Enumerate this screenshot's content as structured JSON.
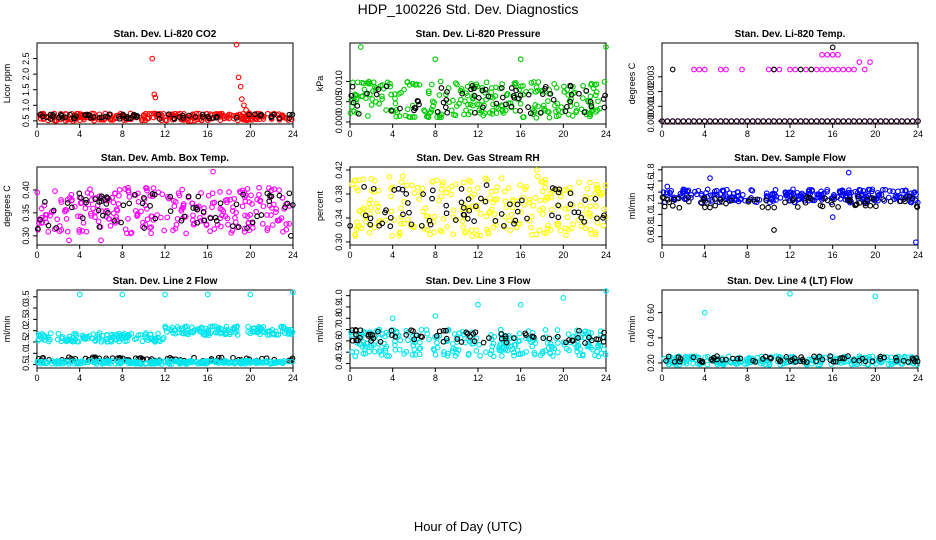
{
  "figure": {
    "title": "HDP_100226  Std. Dev. Diagnostics",
    "xlabel": "Hour of Day (UTC)"
  },
  "chart_data": [
    {
      "type": "scatter",
      "title": "Stan. Dev. Li-820 CO2",
      "ylabel": "Licor ppm",
      "xlim": [
        0,
        24
      ],
      "xticks": [
        0,
        4,
        8,
        12,
        16,
        20,
        24
      ],
      "ylim": [
        0.4,
        3.0
      ],
      "yticks": [
        0.5,
        1.0,
        1.5,
        2.0,
        2.5
      ],
      "series": [
        {
          "name": "red",
          "color": "#ff0000",
          "base": 0.62,
          "spread": 0.12,
          "outliers": [
            [
              10.8,
              2.5
            ],
            [
              11.0,
              1.35
            ],
            [
              11.1,
              1.25
            ],
            [
              18.7,
              2.95
            ],
            [
              18.9,
              1.9
            ],
            [
              19.1,
              1.6
            ],
            [
              19.2,
              1.2
            ],
            [
              19.4,
              1.0
            ],
            [
              19.6,
              0.85
            ],
            [
              19.9,
              0.75
            ]
          ]
        },
        {
          "name": "black",
          "color": "#000000",
          "base": 0.64,
          "spread": 0.08,
          "outliers": []
        }
      ]
    },
    {
      "type": "scatter",
      "title": "Stan. Dev. Li-820 Pressure",
      "ylabel": "kPa",
      "xlim": [
        0,
        24
      ],
      "xticks": [
        0,
        4,
        8,
        12,
        16,
        20,
        24
      ],
      "ylim": [
        -0.0005,
        0.0195
      ],
      "yticks": [
        0.0,
        0.005,
        0.01
      ],
      "series": [
        {
          "name": "green",
          "color": "#00cc00",
          "base": 0.0055,
          "spread": 0.0045,
          "outliers": [
            [
              1.0,
              0.0185
            ],
            [
              8.0,
              0.0155
            ],
            [
              16.0,
              0.0155
            ],
            [
              24.0,
              0.0185
            ]
          ]
        },
        {
          "name": "black",
          "color": "#000000",
          "base": 0.0055,
          "spread": 0.0035,
          "outliers": []
        }
      ]
    },
    {
      "type": "scatter",
      "title": "Stan. Dev. Li-820 Temp.",
      "ylabel": "degrees C",
      "xlim": [
        0,
        24
      ],
      "xticks": [
        0,
        4,
        8,
        12,
        16,
        20,
        24
      ],
      "ylim": [
        -0.0002,
        0.0053
      ],
      "yticks": [
        0.0,
        0.001,
        0.002,
        0.003
      ],
      "series": [
        {
          "name": "magenta",
          "color": "#ff00ff",
          "base": 0.0,
          "spread": 0.0,
          "outliers": [
            [
              3.0,
              0.0035
            ],
            [
              3.5,
              0.0035
            ],
            [
              4.0,
              0.0035
            ],
            [
              5.5,
              0.0035
            ],
            [
              6.0,
              0.0035
            ],
            [
              7.5,
              0.0035
            ],
            [
              10.0,
              0.0035
            ],
            [
              10.5,
              0.0035
            ],
            [
              11.0,
              0.0035
            ],
            [
              12.0,
              0.0035
            ],
            [
              12.5,
              0.0035
            ],
            [
              13.5,
              0.0035
            ],
            [
              14.5,
              0.0035
            ],
            [
              15.0,
              0.0035
            ],
            [
              15.5,
              0.0035
            ],
            [
              16.0,
              0.0035
            ],
            [
              16.5,
              0.0035
            ],
            [
              17.0,
              0.0035
            ],
            [
              17.5,
              0.0035
            ],
            [
              18.0,
              0.0035
            ],
            [
              19.0,
              0.0035
            ],
            [
              15.0,
              0.0045
            ],
            [
              15.5,
              0.0045
            ],
            [
              16.0,
              0.0045
            ],
            [
              16.5,
              0.0045
            ],
            [
              18.5,
              0.004
            ],
            [
              19.5,
              0.004
            ]
          ]
        },
        {
          "name": "black",
          "color": "#000000",
          "base": 0.0,
          "spread": 0.0,
          "outliers": [
            [
              1.0,
              0.0035
            ],
            [
              10.5,
              0.0035
            ],
            [
              13.0,
              0.0035
            ],
            [
              14.0,
              0.0035
            ],
            [
              16.0,
              0.005
            ]
          ]
        }
      ]
    },
    {
      "type": "scatter",
      "title": "Stan. Dev. Amb. Box Temp.",
      "ylabel": "degrees C",
      "xlim": [
        0,
        24
      ],
      "xticks": [
        0,
        4,
        8,
        12,
        16,
        20,
        24
      ],
      "ylim": [
        0.28,
        0.45
      ],
      "yticks": [
        0.3,
        0.35,
        0.4
      ],
      "series": [
        {
          "name": "magenta",
          "color": "#ff00ff",
          "base": 0.355,
          "spread": 0.05,
          "outliers": [
            [
              16.5,
              0.44
            ],
            [
              3.0,
              0.29
            ],
            [
              6.0,
              0.29
            ]
          ]
        },
        {
          "name": "black",
          "color": "#000000",
          "base": 0.355,
          "spread": 0.04,
          "outliers": [
            [
              23.8,
              0.3
            ]
          ]
        }
      ]
    },
    {
      "type": "scatter",
      "title": "Stan. Dev. Gas Stream RH",
      "ylabel": "percent",
      "xlim": [
        0,
        24
      ],
      "xticks": [
        0,
        4,
        8,
        12,
        16,
        20,
        24
      ],
      "ylim": [
        0.295,
        0.425
      ],
      "yticks": [
        0.3,
        0.34,
        0.38,
        0.42
      ],
      "series": [
        {
          "name": "yellow",
          "color": "#ffff00",
          "base": 0.36,
          "spread": 0.05,
          "outliers": [
            [
              17.5,
              0.42
            ],
            [
              0.5,
              0.31
            ]
          ]
        },
        {
          "name": "black",
          "color": "#000000",
          "base": 0.36,
          "spread": 0.035,
          "outliers": []
        }
      ]
    },
    {
      "type": "scatter",
      "title": "Stan. Dev. Sample Flow",
      "ylabel": "ml/min",
      "xlim": [
        0,
        24
      ],
      "xticks": [
        0,
        4,
        8,
        12,
        16,
        20,
        24
      ],
      "ylim": [
        0.45,
        1.85
      ],
      "yticks": [
        0.6,
        0.8,
        1.0,
        1.2,
        1.4,
        1.6,
        1.8
      ],
      "series": [
        {
          "name": "blue",
          "color": "#0000ff",
          "base": 1.33,
          "spread": 0.12,
          "outliers": [
            [
              4.5,
              1.65
            ],
            [
              17.5,
              1.75
            ],
            [
              16.0,
              0.95
            ],
            [
              23.8,
              0.5
            ],
            [
              0.5,
              1.5
            ]
          ]
        },
        {
          "name": "black",
          "color": "#000000",
          "base": 1.22,
          "spread": 0.1,
          "outliers": [
            [
              10.5,
              0.72
            ]
          ]
        }
      ]
    },
    {
      "type": "scatter",
      "title": "Stan. Dev. Line 2 Flow",
      "ylabel": "ml/min",
      "xlim": [
        0,
        24
      ],
      "xticks": [
        0,
        4,
        8,
        12,
        16,
        20,
        24
      ],
      "ylim": [
        0.35,
        3.8
      ],
      "yticks": [
        0.5,
        1.0,
        1.5,
        2.0,
        2.5,
        3.0,
        3.5
      ],
      "series": [
        {
          "name": "cyan",
          "color": "#00e5ee",
          "base": 1.7,
          "spread": 0.2,
          "trend": 0.3,
          "outliers": [
            [
              4.0,
              3.6
            ],
            [
              8.0,
              3.6
            ],
            [
              12.0,
              3.6
            ],
            [
              16.0,
              3.6
            ],
            [
              20.0,
              3.6
            ],
            [
              24.0,
              3.7
            ]
          ]
        },
        {
          "name": "black",
          "color": "#000000",
          "base": 0.75,
          "spread": 0.08,
          "outliers": []
        },
        {
          "name": "cyan-low",
          "color": "#00e5ee",
          "base": 0.6,
          "spread": 0.07,
          "outliers": []
        }
      ]
    },
    {
      "type": "scatter",
      "title": "Stan. Dev. Line 3 Flow",
      "ylabel": "ml/min",
      "xlim": [
        0,
        24
      ],
      "xticks": [
        0,
        4,
        8,
        12,
        16,
        20,
        24
      ],
      "ylim": [
        0.36,
        1.05
      ],
      "yticks": [
        0.4,
        0.5,
        0.6,
        0.7,
        0.8,
        0.9,
        1.0
      ],
      "series": [
        {
          "name": "cyan",
          "color": "#00e5ee",
          "base": 0.58,
          "spread": 0.12,
          "outliers": [
            [
              4.0,
              0.8
            ],
            [
              8.0,
              0.82
            ],
            [
              12.0,
              0.92
            ],
            [
              16.0,
              0.92
            ],
            [
              20.0,
              0.98
            ],
            [
              24.0,
              1.04
            ]
          ]
        },
        {
          "name": "black",
          "color": "#000000",
          "base": 0.64,
          "spread": 0.06,
          "outliers": []
        }
      ]
    },
    {
      "type": "scatter",
      "title": "Stan. Dev. Line 4 (LT) Flow",
      "ylabel": "ml/min",
      "xlim": [
        0,
        24
      ],
      "xticks": [
        0,
        4,
        8,
        12,
        16,
        20,
        24
      ],
      "ylim": [
        0.16,
        0.78
      ],
      "yticks": [
        0.2,
        0.4,
        0.6
      ],
      "series": [
        {
          "name": "cyan",
          "color": "#00e5ee",
          "base": 0.22,
          "spread": 0.035,
          "outliers": [
            [
              4.0,
              0.6
            ],
            [
              12.0,
              0.75
            ],
            [
              20.0,
              0.73
            ]
          ]
        },
        {
          "name": "black",
          "color": "#000000",
          "base": 0.23,
          "spread": 0.025,
          "outliers": []
        }
      ]
    }
  ]
}
